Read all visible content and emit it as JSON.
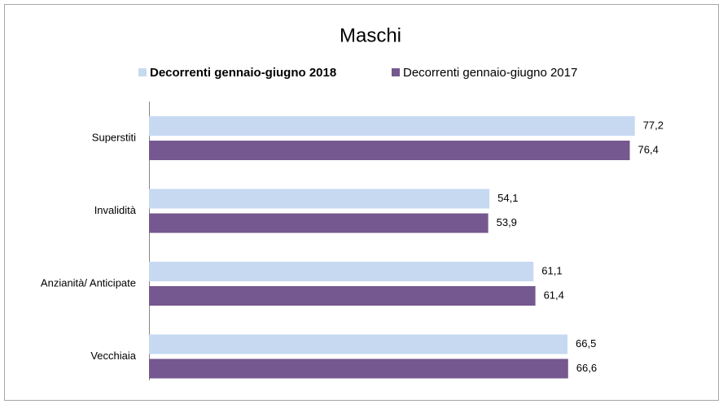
{
  "chart_data": {
    "type": "bar",
    "orientation": "horizontal",
    "title": "Maschi",
    "categories": [
      "Superstiti",
      "Invalidità",
      "Anzianità/ Anticipate",
      "Vecchiaia"
    ],
    "series": [
      {
        "name": "Decorrenti gennaio-giugno 2018",
        "color": "#c6d9f1",
        "values": [
          77.2,
          54.1,
          61.1,
          66.5
        ],
        "value_labels": [
          "77,2",
          "54,1",
          "61,1",
          "66,5"
        ]
      },
      {
        "name": "Decorrenti gennaio-giugno 2017",
        "color": "#75588f",
        "values": [
          76.4,
          53.9,
          61.4,
          66.6
        ],
        "value_labels": [
          "76,4",
          "53,9",
          "61,4",
          "66,6"
        ]
      }
    ],
    "xlim": [
      0,
      85
    ],
    "legend": "top"
  }
}
